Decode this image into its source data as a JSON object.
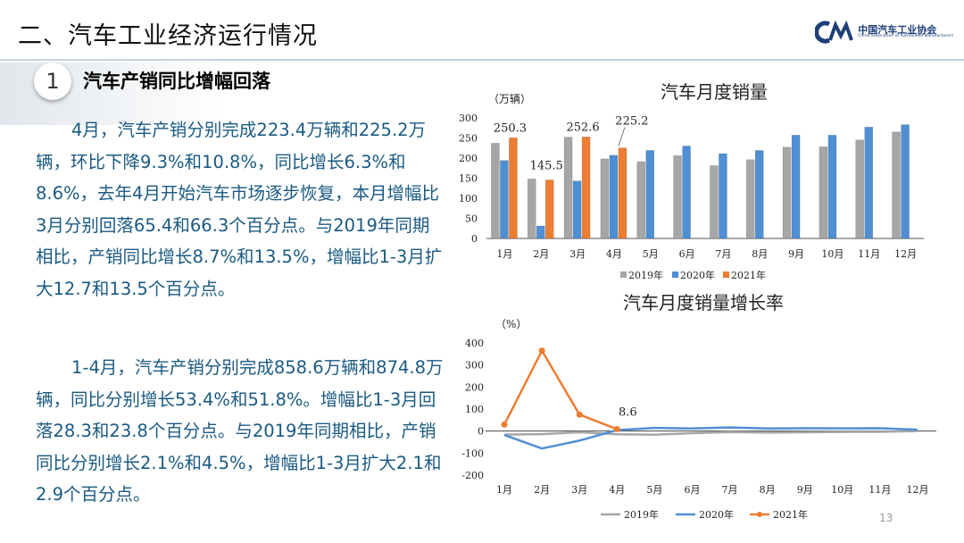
{
  "header": {
    "title": "二、汽车工业经济运行情况",
    "logo_cn": "中国汽车工业协会",
    "logo_en": "China Association of Automobile Manufacturers"
  },
  "section": {
    "number": "1",
    "title": "汽车产销同比增幅回落"
  },
  "paragraphs": [
    "4月，汽车产销分别完成223.4万辆和225.2万辆，环比下降9.3%和10.8%，同比增长6.3%和8.6%，去年4月开始汽车市场逐步恢复，本月增幅比3月分别回落65.4和66.3个百分点。与2019年同期相比，产销同比增长8.7%和13.5%，增幅比1-3月扩大12.7和13.5个百分点。",
    "1-4月，汽车产销分别完成858.6万辆和874.8万辆，同比分别增长53.4%和51.8%。增幅比1-3月回落28.3和23.8个百分点。与2019年同期相比，产销同比分别增长2.1%和4.5%，增幅比1-3月扩大2.1和2.9个百分点。"
  ],
  "page_number": "13",
  "colors": {
    "s2019": "#a6a6a6",
    "s2020": "#4f8fd3",
    "s2021": "#ed7d31"
  },
  "chart_data": [
    {
      "type": "bar",
      "title": "汽车月度销量",
      "ylabel": "（万辆）",
      "categories": [
        "1月",
        "2月",
        "3月",
        "4月",
        "5月",
        "6月",
        "7月",
        "8月",
        "9月",
        "10月",
        "11月",
        "12月"
      ],
      "ylim": [
        0,
        300
      ],
      "yticks": [
        0,
        50,
        100,
        150,
        200,
        250,
        300
      ],
      "series": [
        {
          "name": "2019年",
          "values": [
            237,
            148,
            252,
            198,
            191,
            206,
            181,
            196,
            227,
            228,
            245,
            265
          ]
        },
        {
          "name": "2020年",
          "values": [
            194,
            31,
            143,
            207,
            219,
            230,
            211,
            219,
            257,
            257,
            277,
            283
          ]
        },
        {
          "name": "2021年",
          "values": [
            250.3,
            145.5,
            252.6,
            225.2,
            null,
            null,
            null,
            null,
            null,
            null,
            null,
            null
          ]
        }
      ],
      "data_labels": [
        {
          "series": 2,
          "index": 0,
          "text": "250.3"
        },
        {
          "series": 2,
          "index": 1,
          "text": "145.5"
        },
        {
          "series": 2,
          "index": 2,
          "text": "252.6"
        },
        {
          "series": 2,
          "index": 3,
          "text": "225.2"
        }
      ],
      "grid": false,
      "legend": "bottom"
    },
    {
      "type": "line",
      "title": "汽车月度销量增长率",
      "ylabel": "（%）",
      "categories": [
        "1月",
        "2月",
        "3月",
        "4月",
        "5月",
        "6月",
        "7月",
        "8月",
        "9月",
        "10月",
        "11月",
        "12月"
      ],
      "ylim": [
        -200,
        400
      ],
      "yticks": [
        -200,
        -100,
        0,
        100,
        200,
        300,
        400
      ],
      "series": [
        {
          "name": "2019年",
          "values": [
            -15.8,
            -13.8,
            -5.2,
            -14.6,
            -16.4,
            -9.6,
            -4.3,
            -6.9,
            -5.2,
            -4.0,
            -3.6,
            0.1
          ]
        },
        {
          "name": "2020年",
          "values": [
            -18.0,
            -79.1,
            -43.3,
            4.4,
            14.5,
            11.6,
            16.4,
            11.6,
            12.8,
            12.5,
            12.6,
            6.4
          ]
        },
        {
          "name": "2021年",
          "values": [
            29.5,
            365,
            74.9,
            8.6,
            null,
            null,
            null,
            null,
            null,
            null,
            null,
            null
          ]
        }
      ],
      "data_labels": [
        {
          "series": 2,
          "index": 3,
          "text": "8.6"
        }
      ],
      "grid": false,
      "legend": "bottom"
    }
  ]
}
